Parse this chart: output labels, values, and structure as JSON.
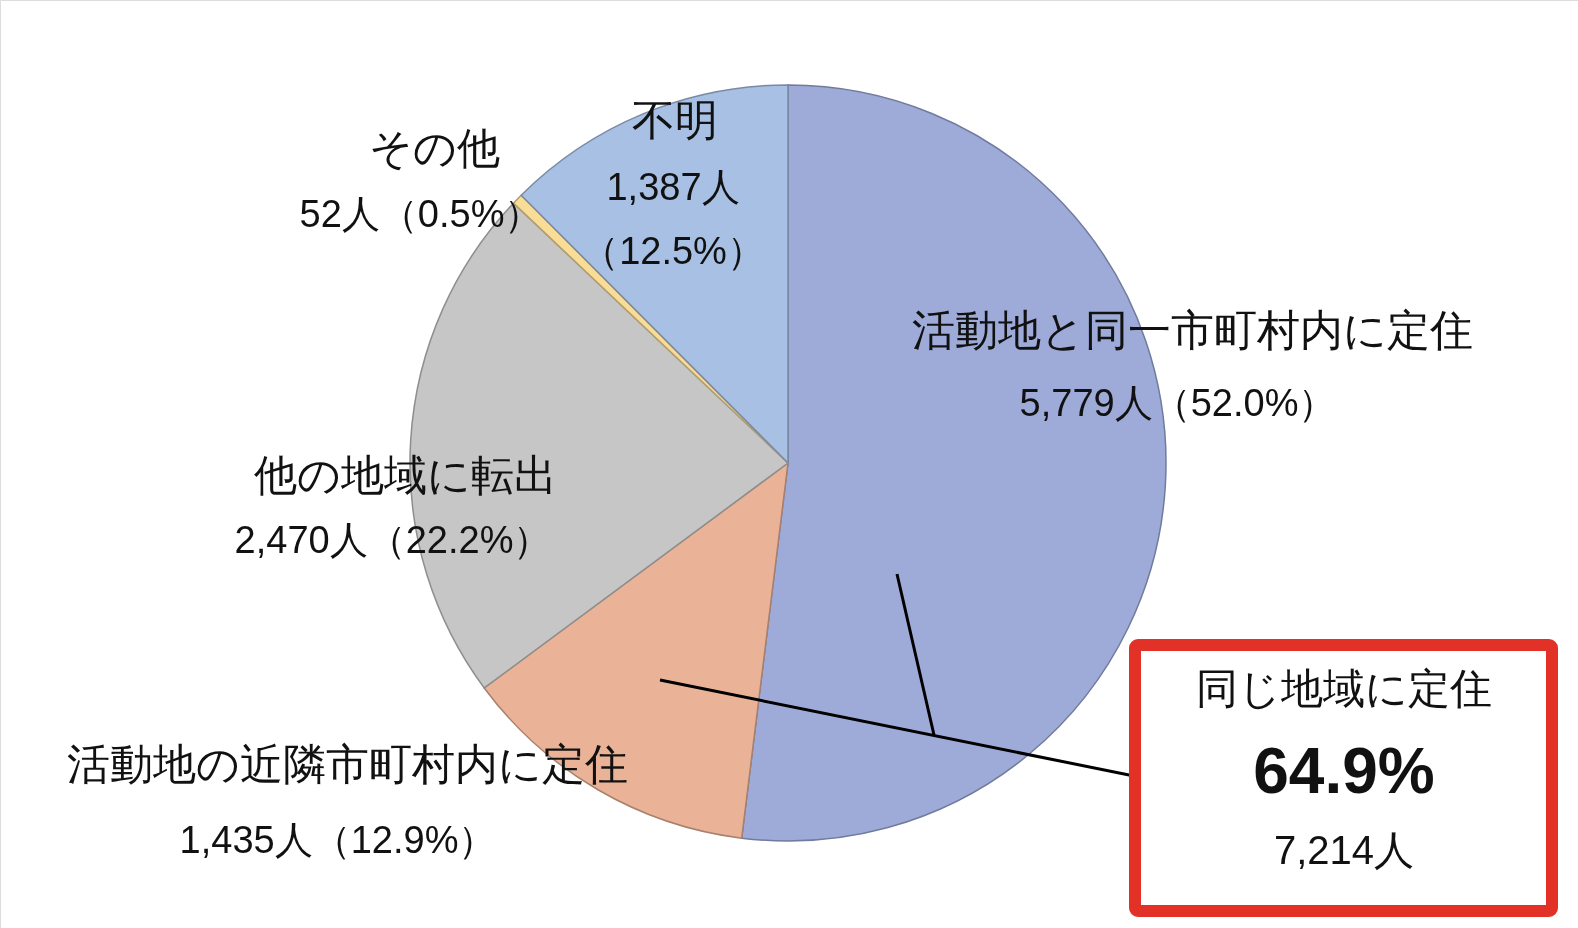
{
  "chart_data": {
    "type": "pie",
    "categories": [
      "活動地と同一市町村内に定住",
      "活動地の近隣市町村内に定住",
      "他の地域に転出",
      "その他",
      "不明"
    ],
    "values": [
      5779,
      1435,
      2470,
      52,
      1387
    ],
    "colors": [
      "#9eabd9",
      "#eab398",
      "#c6c6c6",
      "#f9dc96",
      "#a8c0e4"
    ],
    "value_labels": [
      "5,779人（52.0%）",
      "1,435人（12.9%）",
      "2,470人（22.2%）",
      "52人（0.5%）",
      "1,387人（12.5%）"
    ],
    "annotations": [
      "同じ地域に定住",
      "64.9%",
      "7,214人"
    ]
  }
}
